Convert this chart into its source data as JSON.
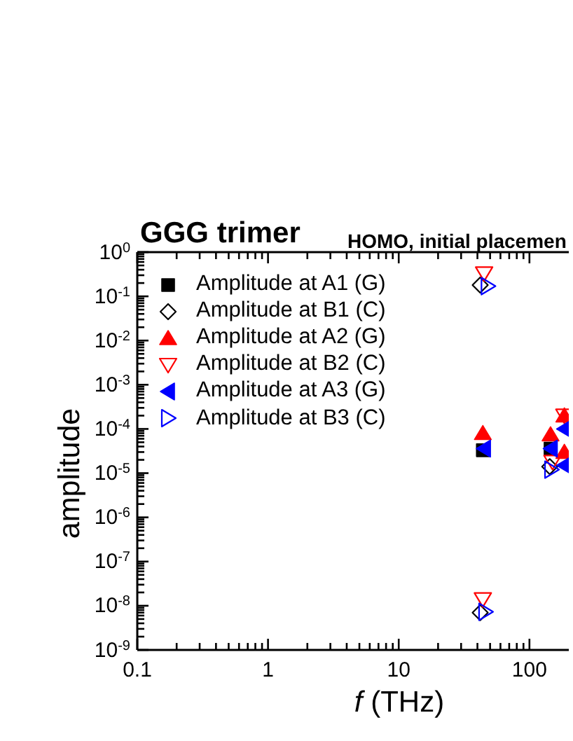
{
  "chart_data": {
    "type": "scatter",
    "title": "GGG trimer",
    "subtitle": "HOMO, initial placemen",
    "xlabel": "f (THz)",
    "ylabel": "amplitude",
    "log": "xy",
    "legend": "top left",
    "xlim": [
      0.1,
      200
    ],
    "xticks": [
      0.1,
      {
        "value": 0.2,
        "label": null
      },
      {
        "value": 0.3,
        "label": null
      },
      {
        "value": 0.4,
        "label": null
      },
      {
        "value": 0.5,
        "label": null
      },
      {
        "value": 0.6,
        "label": null
      },
      {
        "value": 0.7,
        "label": null
      },
      {
        "value": 0.8,
        "label": null
      },
      {
        "value": 0.9,
        "label": null
      },
      1,
      {
        "value": 2,
        "label": null
      },
      {
        "value": 3,
        "label": null
      },
      {
        "value": 4,
        "label": null
      },
      {
        "value": 5,
        "label": null
      },
      {
        "value": 6,
        "label": null
      },
      {
        "value": 7,
        "label": null
      },
      {
        "value": 8,
        "label": null
      },
      {
        "value": 9,
        "label": null
      },
      10,
      {
        "value": 20,
        "label": null
      },
      {
        "value": 30,
        "label": null
      },
      {
        "value": 40,
        "label": null
      },
      {
        "value": 50,
        "label": null
      },
      {
        "value": 60,
        "label": null
      },
      {
        "value": 70,
        "label": null
      },
      {
        "value": 80,
        "label": null
      },
      {
        "value": 90,
        "label": null
      },
      100
    ],
    "ylim": [
      1e-09,
      1
    ],
    "yticks": [
      {
        "value": 1e-09,
        "label": "10$^{-9}$"
      },
      {
        "value": 2e-09,
        "label": null
      },
      {
        "value": 3e-09,
        "label": null
      },
      {
        "value": 4e-09,
        "label": null
      },
      {
        "value": 5e-09,
        "label": null
      },
      {
        "value": 6e-09,
        "label": null
      },
      {
        "value": 7e-09,
        "label": null
      },
      {
        "value": 8e-09,
        "label": null
      },
      {
        "value": 9e-09,
        "label": null
      },
      {
        "value": 1e-08,
        "label": "10$^{-8}$"
      },
      {
        "value": 2e-08,
        "label": null
      },
      {
        "value": 3e-08,
        "label": null
      },
      {
        "value": 4e-08,
        "label": null
      },
      {
        "value": 5e-08,
        "label": null
      },
      {
        "value": 6e-08,
        "label": null
      },
      {
        "value": 7e-08,
        "label": null
      },
      {
        "value": 8e-08,
        "label": null
      },
      {
        "value": 9e-08,
        "label": null
      },
      {
        "value": 1e-07,
        "label": "10$^{-7}$"
      },
      {
        "value": 2e-07,
        "label": null
      },
      {
        "value": 3e-07,
        "label": null
      },
      {
        "value": 4e-07,
        "label": null
      },
      {
        "value": 5e-07,
        "label": null
      },
      {
        "value": 6e-07,
        "label": null
      },
      {
        "value": 7e-07,
        "label": null
      },
      {
        "value": 8e-07,
        "label": null
      },
      {
        "value": 9e-07,
        "label": null
      },
      {
        "value": 1e-06,
        "label": "10$^{-6}$"
      },
      {
        "value": 2e-06,
        "label": null
      },
      {
        "value": 3e-06,
        "label": null
      },
      {
        "value": 4e-06,
        "label": null
      },
      {
        "value": 5e-06,
        "label": null
      },
      {
        "value": 6e-06,
        "label": null
      },
      {
        "value": 7e-06,
        "label": null
      },
      {
        "value": 8e-06,
        "label": null
      },
      {
        "value": 9e-06,
        "label": null
      },
      {
        "value": 1e-05,
        "label": "10$^{-5}$"
      },
      {
        "value": 2e-05,
        "label": null
      },
      {
        "value": 3e-05,
        "label": null
      },
      {
        "value": 4e-05,
        "label": null
      },
      {
        "value": 5e-05,
        "label": null
      },
      {
        "value": 6e-05,
        "label": null
      },
      {
        "value": 7e-05,
        "label": null
      },
      {
        "value": 8e-05,
        "label": null
      },
      {
        "value": 9e-05,
        "label": null
      },
      {
        "value": 0.0001,
        "label": "10$^{-4}$"
      },
      {
        "value": 0.0002,
        "label": null
      },
      {
        "value": 0.0003,
        "label": null
      },
      {
        "value": 0.0004,
        "label": null
      },
      {
        "value": 0.0005,
        "label": null
      },
      {
        "value": 0.0006,
        "label": null
      },
      {
        "value": 0.0007,
        "label": null
      },
      {
        "value": 0.0008,
        "label": null
      },
      {
        "value": 0.0009,
        "label": null
      },
      {
        "value": 0.001,
        "label": "10$^{-3}$"
      },
      {
        "value": 0.002,
        "label": null
      },
      {
        "value": 0.003,
        "label": null
      },
      {
        "value": 0.004,
        "label": null
      },
      {
        "value": 0.005,
        "label": null
      },
      {
        "value": 0.006,
        "label": null
      },
      {
        "value": 0.007,
        "label": null
      },
      {
        "value": 0.008,
        "label": null
      },
      {
        "value": 0.009,
        "label": null
      },
      {
        "value": 0.01,
        "label": "10$^{-2}$"
      },
      {
        "value": 0.02,
        "label": null
      },
      {
        "value": 0.03,
        "label": null
      },
      {
        "value": 0.04,
        "label": null
      },
      {
        "value": 0.05,
        "label": null
      },
      {
        "value": 0.06,
        "label": null
      },
      {
        "value": 0.07,
        "label": null
      },
      {
        "value": 0.08,
        "label": null
      },
      {
        "value": 0.09,
        "label": null
      },
      {
        "value": 0.1,
        "label": "10$^{-1}$"
      },
      {
        "value": 0.2,
        "label": null
      },
      {
        "value": 0.3,
        "label": null
      },
      {
        "value": 0.4,
        "label": null
      },
      {
        "value": 0.5,
        "label": null
      },
      {
        "value": 0.6,
        "label": null
      },
      {
        "value": 0.7,
        "label": null
      },
      {
        "value": 0.8,
        "label": null
      },
      {
        "value": 0.9,
        "label": null
      },
      {
        "value": 1,
        "label": "10$^{0}$"
      }
    ],
    "series": [
      {
        "name": "Amplitude at A1 (G)",
        "color": "#000000",
        "marker": "square",
        "x": [
          44,
          145
        ],
        "values": [
          3.3e-05,
          3.6e-05
        ]
      },
      {
        "name": "Amplitude at B1 (C)",
        "color": "#000000",
        "marker": "diamond",
        "x": [
          42,
          42,
          143
        ],
        "values": [
          0.18,
          7e-09,
          1.4e-05
        ]
      },
      {
        "name": "Amplitude at A2 (G)",
        "color": "#ff0000",
        "marker": "triangle",
        "x": [
          44,
          145,
          185,
          185
        ],
        "values": [
          8e-05,
          7.5e-05,
          0.0002,
          3e-05
        ]
      },
      {
        "name": "Amplitude at B2 (C)",
        "color": "#ff0000",
        "marker": "triangle",
        "x": [
          45,
          44,
          150,
          185
        ],
        "values": [
          0.33,
          1.4e-08,
          1.8e-05,
          0.0002
        ]
      },
      {
        "name": "Amplitude at A3 (G)",
        "color": "#0000ff",
        "marker": "triangle",
        "x": [
          45,
          146,
          185,
          185
        ],
        "values": [
          3.6e-05,
          3.6e-05,
          0.0001,
          1.5e-05
        ]
      },
      {
        "name": "Amplitude at B3 (C)",
        "color": "#0000ff",
        "marker": "triangle",
        "x": [
          48,
          46,
          147
        ],
        "values": [
          0.17,
          7.3e-09,
          1.2e-05
        ]
      }
    ]
  }
}
